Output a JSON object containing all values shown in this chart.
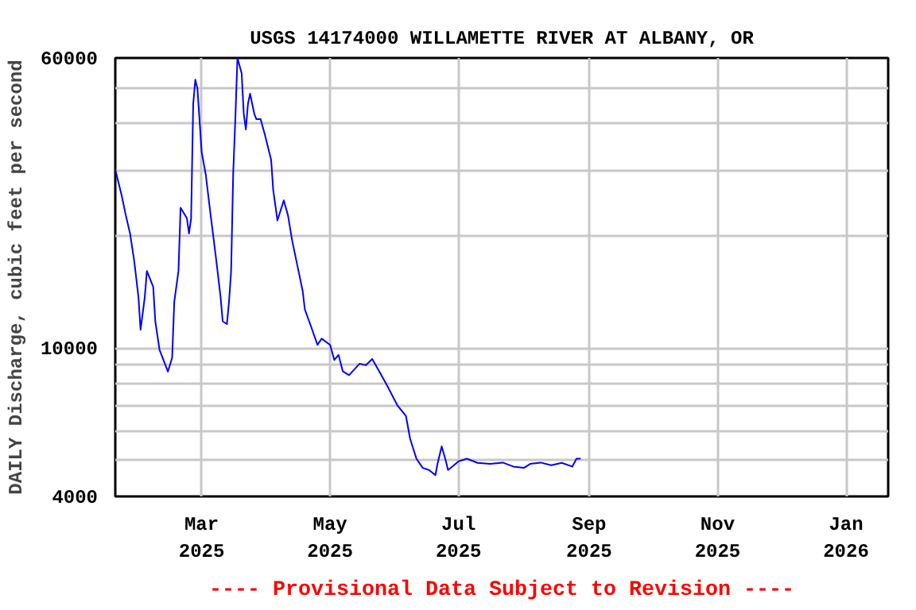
{
  "chart_data": {
    "type": "line",
    "title": "USGS 14174000 WILLAMETTE RIVER AT ALBANY, OR",
    "ylabel": "DAILY Discharge, cubic feet per second",
    "annotations": [
      "---- Provisional Data Subject to Revision ----"
    ],
    "log": "y",
    "grid": true,
    "marker": "none",
    "line_style": "solid",
    "xlim": [
      "2025-01-19",
      "2026-01-21"
    ],
    "xticks": [
      {
        "value": "2025-03-01",
        "label": "Mar\n2025"
      },
      {
        "value": "2025-05-01",
        "label": "May\n2025"
      },
      {
        "value": "2025-07-01",
        "label": "Jul\n2025"
      },
      {
        "value": "2025-09-01",
        "label": "Sep\n2025"
      },
      {
        "value": "2025-11-01",
        "label": "Nov\n2025"
      },
      {
        "value": "2026-01-01",
        "label": "Jan\n2026"
      }
    ],
    "ylim": [
      4000,
      60000
    ],
    "yticks": [
      4000,
      {
        "value": 5000,
        "label": null
      },
      {
        "value": 6000,
        "label": null
      },
      {
        "value": 7000,
        "label": null
      },
      {
        "value": 8000,
        "label": null
      },
      {
        "value": 9000,
        "label": null
      },
      10000,
      {
        "value": 20000,
        "label": null
      },
      {
        "value": 30000,
        "label": null
      },
      {
        "value": 40000,
        "label": null
      },
      {
        "value": 50000,
        "label": null
      },
      60000
    ],
    "series": [
      {
        "color": "#0000ff",
        "x": [
          "2025-01-19",
          "2025-01-22",
          "2025-01-24",
          "2025-01-26",
          "2025-01-28",
          "2025-01-30",
          "2025-01-31",
          "2025-02-02",
          "2025-02-03",
          "2025-02-06",
          "2025-02-07",
          "2025-02-09",
          "2025-02-13",
          "2025-02-15",
          "2025-02-16",
          "2025-02-18",
          "2025-02-19",
          "2025-02-22",
          "2025-02-23",
          "2025-02-24",
          "2025-02-25",
          "2025-02-26",
          "2025-02-27",
          "2025-03-01",
          "2025-03-03",
          "2025-03-05",
          "2025-03-08",
          "2025-03-10",
          "2025-03-11",
          "2025-03-13",
          "2025-03-14",
          "2025-03-15",
          "2025-03-16",
          "2025-03-17",
          "2025-03-18",
          "2025-03-20",
          "2025-03-21",
          "2025-03-22",
          "2025-03-23",
          "2025-03-24",
          "2025-03-26",
          "2025-03-27",
          "2025-03-29",
          "2025-03-31",
          "2025-04-03",
          "2025-04-04",
          "2025-04-06",
          "2025-04-09",
          "2025-04-11",
          "2025-04-13",
          "2025-04-16",
          "2025-04-18",
          "2025-04-19",
          "2025-04-22",
          "2025-04-25",
          "2025-04-27",
          "2025-05-01",
          "2025-05-03",
          "2025-05-05",
          "2025-05-07",
          "2025-05-10",
          "2025-05-15",
          "2025-05-18",
          "2025-05-21",
          "2025-05-24",
          "2025-05-28",
          "2025-06-02",
          "2025-06-06",
          "2025-06-08",
          "2025-06-11",
          "2025-06-14",
          "2025-06-17",
          "2025-06-20",
          "2025-06-21",
          "2025-06-23",
          "2025-06-25",
          "2025-06-26",
          "2025-06-28",
          "2025-07-01",
          "2025-07-05",
          "2025-07-10",
          "2025-07-16",
          "2025-07-22",
          "2025-07-27",
          "2025-08-01",
          "2025-08-04",
          "2025-08-09",
          "2025-08-14",
          "2025-08-19",
          "2025-08-24",
          "2025-08-26",
          "2025-08-28"
        ],
        "values": [
          30100,
          25700,
          22700,
          20300,
          17100,
          13700,
          11200,
          13700,
          16100,
          14600,
          11800,
          9900,
          8650,
          9430,
          13300,
          16100,
          23800,
          22300,
          20300,
          22300,
          45200,
          52500,
          49700,
          33600,
          29100,
          23400,
          17100,
          13700,
          11800,
          11600,
          13300,
          16100,
          29600,
          41100,
          60000,
          54600,
          42500,
          38600,
          45200,
          48100,
          42500,
          41100,
          41100,
          37400,
          32000,
          26500,
          22000,
          24900,
          22700,
          19400,
          16100,
          14200,
          12700,
          11400,
          10200,
          10600,
          10200,
          9290,
          9590,
          8670,
          8460,
          9080,
          9000,
          9350,
          8730,
          7950,
          7010,
          6580,
          5710,
          5050,
          4770,
          4710,
          4560,
          4890,
          5450,
          4970,
          4710,
          4810,
          4970,
          5050,
          4920,
          4890,
          4930,
          4810,
          4770,
          4890,
          4930,
          4850,
          4920,
          4810,
          5050,
          5050
        ]
      }
    ]
  }
}
